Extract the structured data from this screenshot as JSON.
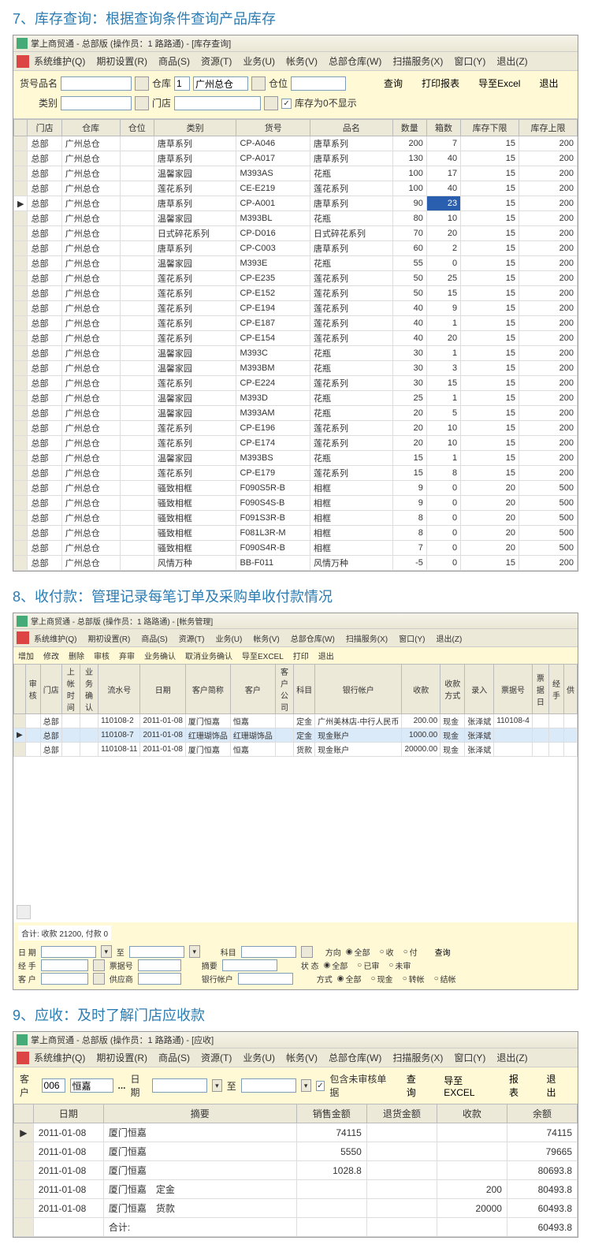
{
  "section7": {
    "title": "7、库存查询：根据查询条件查询产品库存",
    "window_title": "掌上商贸通 - 总部版 (操作员：1 路路通) - [库存查询]",
    "menu": [
      "系统维护(Q)",
      "期初设置(R)",
      "商品(S)",
      "资源(T)",
      "业务(U)",
      "帐务(V)",
      "总部仓库(W)",
      "扫描服务(X)",
      "窗口(Y)",
      "退出(Z)"
    ],
    "filters": {
      "hpmc_label": "货号品名",
      "ck_label": "仓库",
      "ck_no": "1",
      "ck_name": "广州总仓",
      "cw_label": "仓位",
      "lb_label": "类别",
      "md_label": "门店",
      "zero_label": "库存为0不显示",
      "btn_query": "查询",
      "btn_print": "打印报表",
      "btn_export": "导至Excel",
      "btn_exit": "退出"
    },
    "cols": [
      "门店",
      "仓库",
      "仓位",
      "类别",
      "货号",
      "品名",
      "数量",
      "箱数",
      "库存下限",
      "库存上限"
    ],
    "rows": [
      [
        "总部",
        "广州总仓",
        "",
        "唐草系列",
        "CP-A046",
        "唐草系列",
        "200",
        "7",
        "15",
        "200"
      ],
      [
        "总部",
        "广州总仓",
        "",
        "唐草系列",
        "CP-A017",
        "唐草系列",
        "130",
        "40",
        "15",
        "200"
      ],
      [
        "总部",
        "广州总仓",
        "",
        "温馨家园",
        "M393AS",
        "花瓶",
        "100",
        "17",
        "15",
        "200"
      ],
      [
        "总部",
        "广州总仓",
        "",
        "莲花系列",
        "CE-E219",
        "莲花系列",
        "100",
        "40",
        "15",
        "200"
      ],
      [
        "总部",
        "广州总仓",
        "",
        "唐草系列",
        "CP-A001",
        "唐草系列",
        "90",
        "23",
        "15",
        "200"
      ],
      [
        "总部",
        "广州总仓",
        "",
        "温馨家园",
        "M393BL",
        "花瓶",
        "80",
        "10",
        "15",
        "200"
      ],
      [
        "总部",
        "广州总仓",
        "",
        "日式碎花系列",
        "CP-D016",
        "日式碎花系列",
        "70",
        "20",
        "15",
        "200"
      ],
      [
        "总部",
        "广州总仓",
        "",
        "唐草系列",
        "CP-C003",
        "唐草系列",
        "60",
        "2",
        "15",
        "200"
      ],
      [
        "总部",
        "广州总仓",
        "",
        "温馨家园",
        "M393E",
        "花瓶",
        "55",
        "0",
        "15",
        "200"
      ],
      [
        "总部",
        "广州总仓",
        "",
        "莲花系列",
        "CP-E235",
        "莲花系列",
        "50",
        "25",
        "15",
        "200"
      ],
      [
        "总部",
        "广州总仓",
        "",
        "莲花系列",
        "CP-E152",
        "莲花系列",
        "50",
        "15",
        "15",
        "200"
      ],
      [
        "总部",
        "广州总仓",
        "",
        "莲花系列",
        "CP-E194",
        "莲花系列",
        "40",
        "9",
        "15",
        "200"
      ],
      [
        "总部",
        "广州总仓",
        "",
        "莲花系列",
        "CP-E187",
        "莲花系列",
        "40",
        "1",
        "15",
        "200"
      ],
      [
        "总部",
        "广州总仓",
        "",
        "莲花系列",
        "CP-E154",
        "莲花系列",
        "40",
        "20",
        "15",
        "200"
      ],
      [
        "总部",
        "广州总仓",
        "",
        "温馨家园",
        "M393C",
        "花瓶",
        "30",
        "1",
        "15",
        "200"
      ],
      [
        "总部",
        "广州总仓",
        "",
        "温馨家园",
        "M393BM",
        "花瓶",
        "30",
        "3",
        "15",
        "200"
      ],
      [
        "总部",
        "广州总仓",
        "",
        "莲花系列",
        "CP-E224",
        "莲花系列",
        "30",
        "15",
        "15",
        "200"
      ],
      [
        "总部",
        "广州总仓",
        "",
        "温馨家园",
        "M393D",
        "花瓶",
        "25",
        "1",
        "15",
        "200"
      ],
      [
        "总部",
        "广州总仓",
        "",
        "温馨家园",
        "M393AM",
        "花瓶",
        "20",
        "5",
        "15",
        "200"
      ],
      [
        "总部",
        "广州总仓",
        "",
        "莲花系列",
        "CP-E196",
        "莲花系列",
        "20",
        "10",
        "15",
        "200"
      ],
      [
        "总部",
        "广州总仓",
        "",
        "莲花系列",
        "CP-E174",
        "莲花系列",
        "20",
        "10",
        "15",
        "200"
      ],
      [
        "总部",
        "广州总仓",
        "",
        "温馨家园",
        "M393BS",
        "花瓶",
        "15",
        "1",
        "15",
        "200"
      ],
      [
        "总部",
        "广州总仓",
        "",
        "莲花系列",
        "CP-E179",
        "莲花系列",
        "15",
        "8",
        "15",
        "200"
      ],
      [
        "总部",
        "广州总仓",
        "",
        "骚致相框",
        "F090S5R-B",
        "相框",
        "9",
        "0",
        "20",
        "500"
      ],
      [
        "总部",
        "广州总仓",
        "",
        "骚致相框",
        "F090S4S-B",
        "相框",
        "9",
        "0",
        "20",
        "500"
      ],
      [
        "总部",
        "广州总仓",
        "",
        "骚致相框",
        "F091S3R-B",
        "相框",
        "8",
        "0",
        "20",
        "500"
      ],
      [
        "总部",
        "广州总仓",
        "",
        "骚致相框",
        "F081L3R-M",
        "相框",
        "8",
        "0",
        "20",
        "500"
      ],
      [
        "总部",
        "广州总仓",
        "",
        "骚致相框",
        "F090S4R-B",
        "相框",
        "7",
        "0",
        "20",
        "500"
      ],
      [
        "总部",
        "广州总仓",
        "",
        "风情万种",
        "BB-F011",
        "风情万种",
        "-5",
        "0",
        "15",
        "200"
      ]
    ],
    "sel_row": 4
  },
  "section8": {
    "title": "8、收付款：管理记录每笔订单及采购单收付款情况",
    "window_title": "掌上商贸通 - 总部版 (操作员：1 路路通) - [帐务管理]",
    "menu": [
      "系统维护(Q)",
      "期初设置(R)",
      "商品(S)",
      "资源(T)",
      "业务(U)",
      "帐务(V)",
      "总部仓库(W)",
      "扫描服务(X)",
      "窗口(Y)",
      "退出(Z)"
    ],
    "toolbar": [
      "增加",
      "修改",
      "删除",
      "审核",
      "弃审",
      "业务确认",
      "取消业务确认",
      "导至EXCEL",
      "打印",
      "退出"
    ],
    "cols": [
      "审核",
      "门店",
      "上帐时间",
      "业务确认",
      "流水号",
      "日期",
      "客户简称",
      "客户",
      "客户公司",
      "科目",
      "银行帐户",
      "收款",
      "收款方式",
      "录入",
      "票据号",
      "票据日",
      "经手",
      "供"
    ],
    "rows": [
      [
        "",
        "总部",
        "",
        "",
        "110108-2",
        "2011-01-08",
        "厦门恒嘉",
        "恒嘉",
        "",
        "定金",
        "广州美林店-中行人民币",
        "200.00",
        "现金",
        "张泽斌",
        "110108-4",
        "",
        "",
        ""
      ],
      [
        "",
        "总部",
        "",
        "",
        "110108-7",
        "2011-01-08",
        "红珊瑚饰品",
        "红珊瑚饰品",
        "",
        "定金",
        "现金账户",
        "1000.00",
        "现金",
        "张泽斌",
        "",
        "",
        "",
        ""
      ],
      [
        "",
        "总部",
        "",
        "",
        "110108-11",
        "2011-01-08",
        "厦门恒嘉",
        "恒嘉",
        "",
        "货款",
        "现金账户",
        "20000.00",
        "现金",
        "张泽斌",
        "",
        "",
        "",
        ""
      ]
    ],
    "sel_row": 1,
    "summary": "合计: 收款 21200, 付款 0",
    "footer": {
      "date_lbl": "日 期",
      "to": "至",
      "subject_lbl": "科目",
      "direction_lbl": "方向",
      "d_all": "全部",
      "d_in": "收",
      "d_out": "付",
      "btn_query": "查询",
      "handler_lbl": "经 手",
      "bill_lbl": "票据号",
      "summary_lbl": "摘要",
      "status_lbl": "状 态",
      "s_all": "全部",
      "s_done": "已审",
      "s_not": "未审",
      "cust_lbl": "客 户",
      "supplier_lbl": "供应商",
      "bank_lbl": "银行帐户",
      "way_lbl": "方式",
      "w_all": "全部",
      "w_cash": "现金",
      "w_trans": "转帐",
      "w_remit": "结帐"
    }
  },
  "section9": {
    "title": "9、应收：及时了解门店应收款",
    "window_title": "掌上商贸通 - 总部版 (操作员：1 路路通) - [应收]",
    "menu": [
      "系统维护(Q)",
      "期初设置(R)",
      "商品(S)",
      "资源(T)",
      "业务(U)",
      "帐务(V)",
      "总部仓库(W)",
      "扫描服务(X)",
      "窗口(Y)",
      "退出(Z)"
    ],
    "toolbar": {
      "cust_lbl": "客户",
      "cust_no": "006",
      "cust_name": "恒嘉",
      "date_lbl": "日期",
      "to": "至",
      "chk_lbl": "包含未审核单据",
      "btn_query": "查询",
      "btn_export": "导至EXCEL",
      "btn_report": "报表",
      "btn_exit": "退出"
    },
    "cols": [
      "日期",
      "摘要",
      "销售金额",
      "退货金额",
      "收款",
      "余额"
    ],
    "rows": [
      [
        "2011-01-08",
        "厦门恒嘉",
        "74115",
        "",
        "",
        "74115"
      ],
      [
        "2011-01-08",
        "厦门恒嘉",
        "5550",
        "",
        "",
        "79665"
      ],
      [
        "2011-01-08",
        "厦门恒嘉",
        "1028.8",
        "",
        "",
        "80693.8"
      ],
      [
        "2011-01-08",
        "厦门恒嘉　定金",
        "",
        "",
        "200",
        "80493.8"
      ],
      [
        "2011-01-08",
        "厦门恒嘉　货款",
        "",
        "",
        "20000",
        "60493.8"
      ],
      [
        "",
        "合计:",
        "",
        "",
        "",
        "60493.8"
      ]
    ]
  }
}
